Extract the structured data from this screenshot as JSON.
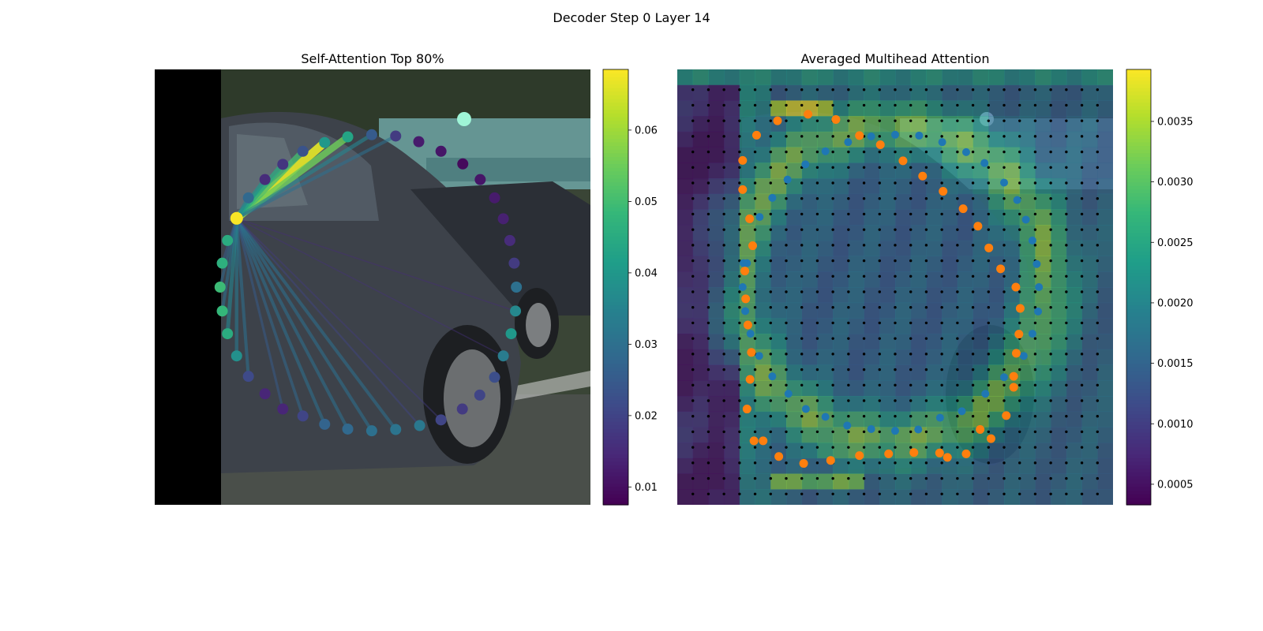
{
  "figure": {
    "suptitle": "Decoder Step 0 Layer 14"
  },
  "chart_data": [
    {
      "type": "scatter",
      "title": "Self-Attention Top 80%",
      "description_of_background": "camera image of a dark car, left strip black",
      "colormap": "viridis",
      "colorbar": {
        "range": [
          0.0075,
          0.0685
        ],
        "ticks": [
          0.01,
          0.02,
          0.03,
          0.04,
          0.05,
          0.06
        ],
        "tick_labels": [
          "0.01",
          "0.02",
          "0.03",
          "0.04",
          "0.05",
          "0.06"
        ]
      },
      "query_point": {
        "x": 0.188,
        "y": 0.342,
        "value": 0.068
      },
      "points": [
        {
          "x": 0.188,
          "y": 0.342,
          "v": 0.068
        },
        {
          "x": 0.215,
          "y": 0.295,
          "v": 0.028
        },
        {
          "x": 0.253,
          "y": 0.253,
          "v": 0.015
        },
        {
          "x": 0.294,
          "y": 0.218,
          "v": 0.017
        },
        {
          "x": 0.34,
          "y": 0.188,
          "v": 0.023
        },
        {
          "x": 0.39,
          "y": 0.168,
          "v": 0.04
        },
        {
          "x": 0.443,
          "y": 0.155,
          "v": 0.043
        },
        {
          "x": 0.498,
          "y": 0.15,
          "v": 0.025
        },
        {
          "x": 0.553,
          "y": 0.153,
          "v": 0.018
        },
        {
          "x": 0.606,
          "y": 0.166,
          "v": 0.012
        },
        {
          "x": 0.657,
          "y": 0.188,
          "v": 0.011
        },
        {
          "x": 0.707,
          "y": 0.217,
          "v": 0.009
        },
        {
          "x": 0.747,
          "y": 0.253,
          "v": 0.011
        },
        {
          "x": 0.78,
          "y": 0.295,
          "v": 0.012
        },
        {
          "x": 0.8,
          "y": 0.343,
          "v": 0.013
        },
        {
          "x": 0.815,
          "y": 0.393,
          "v": 0.015
        },
        {
          "x": 0.825,
          "y": 0.445,
          "v": 0.018
        },
        {
          "x": 0.83,
          "y": 0.5,
          "v": 0.03
        },
        {
          "x": 0.828,
          "y": 0.555,
          "v": 0.036
        },
        {
          "x": 0.818,
          "y": 0.607,
          "v": 0.04
        },
        {
          "x": 0.8,
          "y": 0.658,
          "v": 0.033
        },
        {
          "x": 0.78,
          "y": 0.707,
          "v": 0.022
        },
        {
          "x": 0.746,
          "y": 0.748,
          "v": 0.02
        },
        {
          "x": 0.706,
          "y": 0.78,
          "v": 0.018
        },
        {
          "x": 0.657,
          "y": 0.805,
          "v": 0.02
        },
        {
          "x": 0.608,
          "y": 0.818,
          "v": 0.032
        },
        {
          "x": 0.553,
          "y": 0.827,
          "v": 0.031
        },
        {
          "x": 0.498,
          "y": 0.83,
          "v": 0.03
        },
        {
          "x": 0.443,
          "y": 0.826,
          "v": 0.028
        },
        {
          "x": 0.39,
          "y": 0.815,
          "v": 0.027
        },
        {
          "x": 0.34,
          "y": 0.796,
          "v": 0.02
        },
        {
          "x": 0.294,
          "y": 0.78,
          "v": 0.014
        },
        {
          "x": 0.253,
          "y": 0.745,
          "v": 0.014
        },
        {
          "x": 0.215,
          "y": 0.705,
          "v": 0.021
        },
        {
          "x": 0.188,
          "y": 0.658,
          "v": 0.038
        },
        {
          "x": 0.167,
          "y": 0.607,
          "v": 0.045
        },
        {
          "x": 0.155,
          "y": 0.555,
          "v": 0.048
        },
        {
          "x": 0.15,
          "y": 0.5,
          "v": 0.049
        },
        {
          "x": 0.155,
          "y": 0.445,
          "v": 0.046
        },
        {
          "x": 0.167,
          "y": 0.393,
          "v": 0.045
        }
      ],
      "links": [
        {
          "to": 5,
          "w": 0.066
        },
        {
          "to": 6,
          "w": 0.055
        },
        {
          "to": 4,
          "w": 0.05
        },
        {
          "to": 3,
          "w": 0.045
        },
        {
          "to": 7,
          "w": 0.035
        },
        {
          "to": 8,
          "w": 0.03
        },
        {
          "to": 2,
          "w": 0.04
        },
        {
          "to": 1,
          "w": 0.035
        },
        {
          "to": 26,
          "w": 0.03
        },
        {
          "to": 27,
          "w": 0.03
        },
        {
          "to": 28,
          "w": 0.03
        },
        {
          "to": 29,
          "w": 0.03
        },
        {
          "to": 30,
          "w": 0.028
        },
        {
          "to": 31,
          "w": 0.025
        },
        {
          "to": 33,
          "w": 0.03
        },
        {
          "to": 34,
          "w": 0.032
        },
        {
          "to": 35,
          "w": 0.035
        },
        {
          "to": 36,
          "w": 0.03
        },
        {
          "to": 37,
          "w": 0.028
        },
        {
          "to": 38,
          "w": 0.025
        },
        {
          "to": 25,
          "w": 0.02
        },
        {
          "to": 24,
          "w": 0.018
        },
        {
          "to": 20,
          "w": 0.016
        },
        {
          "to": 18,
          "w": 0.015
        }
      ]
    },
    {
      "type": "heatmap",
      "title": "Averaged Multihead Attention",
      "colormap": "viridis",
      "grid": {
        "cols": 28,
        "rows": 28
      },
      "colorbar": {
        "range": [
          0.00033,
          0.00393
        ],
        "ticks": [
          0.0005,
          0.001,
          0.0015,
          0.002,
          0.0025,
          0.003,
          0.0035
        ],
        "tick_labels": [
          "0.0005",
          "0.0010",
          "0.0015",
          "0.0020",
          "0.0025",
          "0.0030",
          "0.0035"
        ]
      },
      "orange_points": [
        {
          "x": 0.23,
          "y": 0.118
        },
        {
          "x": 0.3,
          "y": 0.103
        },
        {
          "x": 0.364,
          "y": 0.115
        },
        {
          "x": 0.418,
          "y": 0.152
        },
        {
          "x": 0.466,
          "y": 0.173
        },
        {
          "x": 0.518,
          "y": 0.21
        },
        {
          "x": 0.563,
          "y": 0.245
        },
        {
          "x": 0.61,
          "y": 0.28
        },
        {
          "x": 0.656,
          "y": 0.32
        },
        {
          "x": 0.69,
          "y": 0.36
        },
        {
          "x": 0.715,
          "y": 0.41
        },
        {
          "x": 0.742,
          "y": 0.458
        },
        {
          "x": 0.777,
          "y": 0.5
        },
        {
          "x": 0.787,
          "y": 0.549
        },
        {
          "x": 0.784,
          "y": 0.608
        },
        {
          "x": 0.778,
          "y": 0.652
        },
        {
          "x": 0.772,
          "y": 0.73
        },
        {
          "x": 0.772,
          "y": 0.705
        },
        {
          "x": 0.755,
          "y": 0.795
        },
        {
          "x": 0.72,
          "y": 0.848
        },
        {
          "x": 0.695,
          "y": 0.827
        },
        {
          "x": 0.663,
          "y": 0.883
        },
        {
          "x": 0.62,
          "y": 0.891
        },
        {
          "x": 0.602,
          "y": 0.881
        },
        {
          "x": 0.543,
          "y": 0.88
        },
        {
          "x": 0.485,
          "y": 0.883
        },
        {
          "x": 0.418,
          "y": 0.887
        },
        {
          "x": 0.352,
          "y": 0.898
        },
        {
          "x": 0.29,
          "y": 0.905
        },
        {
          "x": 0.233,
          "y": 0.889
        },
        {
          "x": 0.176,
          "y": 0.853
        },
        {
          "x": 0.197,
          "y": 0.853
        },
        {
          "x": 0.16,
          "y": 0.78
        },
        {
          "x": 0.167,
          "y": 0.712
        },
        {
          "x": 0.17,
          "y": 0.65
        },
        {
          "x": 0.162,
          "y": 0.587
        },
        {
          "x": 0.157,
          "y": 0.527
        },
        {
          "x": 0.155,
          "y": 0.463
        },
        {
          "x": 0.173,
          "y": 0.405
        },
        {
          "x": 0.166,
          "y": 0.343
        },
        {
          "x": 0.15,
          "y": 0.276
        },
        {
          "x": 0.15,
          "y": 0.209
        },
        {
          "x": 0.182,
          "y": 0.151
        }
      ],
      "blue_points": [
        {
          "x": 0.16,
          "y": 0.445
        },
        {
          "x": 0.189,
          "y": 0.339
        },
        {
          "x": 0.218,
          "y": 0.295
        },
        {
          "x": 0.253,
          "y": 0.253
        },
        {
          "x": 0.294,
          "y": 0.218
        },
        {
          "x": 0.34,
          "y": 0.188
        },
        {
          "x": 0.392,
          "y": 0.167
        },
        {
          "x": 0.445,
          "y": 0.154
        },
        {
          "x": 0.5,
          "y": 0.15
        },
        {
          "x": 0.555,
          "y": 0.152
        },
        {
          "x": 0.608,
          "y": 0.167
        },
        {
          "x": 0.663,
          "y": 0.19
        },
        {
          "x": 0.705,
          "y": 0.215
        },
        {
          "x": 0.75,
          "y": 0.26
        },
        {
          "x": 0.78,
          "y": 0.3
        },
        {
          "x": 0.8,
          "y": 0.345
        },
        {
          "x": 0.815,
          "y": 0.393
        },
        {
          "x": 0.825,
          "y": 0.447
        },
        {
          "x": 0.83,
          "y": 0.5
        },
        {
          "x": 0.828,
          "y": 0.556
        },
        {
          "x": 0.815,
          "y": 0.607
        },
        {
          "x": 0.795,
          "y": 0.658
        },
        {
          "x": 0.75,
          "y": 0.707
        },
        {
          "x": 0.707,
          "y": 0.745
        },
        {
          "x": 0.653,
          "y": 0.785
        },
        {
          "x": 0.603,
          "y": 0.8
        },
        {
          "x": 0.553,
          "y": 0.827
        },
        {
          "x": 0.5,
          "y": 0.83
        },
        {
          "x": 0.445,
          "y": 0.826
        },
        {
          "x": 0.39,
          "y": 0.818
        },
        {
          "x": 0.34,
          "y": 0.798
        },
        {
          "x": 0.295,
          "y": 0.78
        },
        {
          "x": 0.255,
          "y": 0.745
        },
        {
          "x": 0.218,
          "y": 0.705
        },
        {
          "x": 0.188,
          "y": 0.658
        },
        {
          "x": 0.168,
          "y": 0.607
        },
        {
          "x": 0.156,
          "y": 0.555
        },
        {
          "x": 0.15,
          "y": 0.5
        },
        {
          "x": 0.152,
          "y": 0.445
        }
      ]
    }
  ]
}
